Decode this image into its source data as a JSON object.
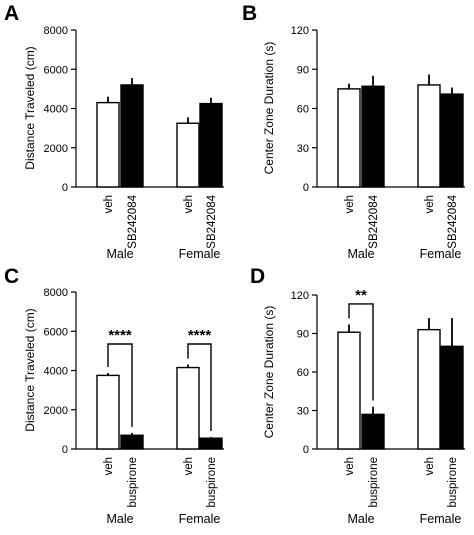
{
  "chart_data": [
    {
      "type": "bar",
      "panel": "A",
      "ylabel": "Distance Traveled (cm)",
      "ylim": [
        0,
        8000
      ],
      "yticks": [
        0,
        2000,
        4000,
        6000,
        8000
      ],
      "groups": [
        "Male",
        "Female"
      ],
      "categories": [
        "veh",
        "SB242084"
      ],
      "series": [
        {
          "values": [
            4300,
            5200
          ],
          "errors": [
            300,
            350
          ]
        },
        {
          "values": [
            3250,
            4250
          ],
          "errors": [
            300,
            300
          ]
        }
      ],
      "colors": [
        "#ffffff",
        "#000000"
      ],
      "significance": []
    },
    {
      "type": "bar",
      "panel": "B",
      "ylabel": "Center Zone Duration (s)",
      "ylim": [
        0,
        120
      ],
      "yticks": [
        0,
        30,
        60,
        90,
        120
      ],
      "groups": [
        "Male",
        "Female"
      ],
      "categories": [
        "veh",
        "SB242084"
      ],
      "series": [
        {
          "values": [
            75,
            77
          ],
          "errors": [
            4,
            8
          ]
        },
        {
          "values": [
            78,
            71
          ],
          "errors": [
            8,
            5
          ]
        }
      ],
      "colors": [
        "#ffffff",
        "#000000"
      ],
      "significance": []
    },
    {
      "type": "bar",
      "panel": "C",
      "ylabel": "Distance Traveled (cm)",
      "ylim": [
        0,
        8000
      ],
      "yticks": [
        0,
        2000,
        4000,
        6000,
        8000
      ],
      "groups": [
        "Male",
        "Female"
      ],
      "categories": [
        "veh",
        "buspirone"
      ],
      "series": [
        {
          "values": [
            3750,
            700
          ],
          "errors": [
            120,
            120
          ]
        },
        {
          "values": [
            4150,
            550
          ],
          "errors": [
            150,
            60
          ]
        }
      ],
      "colors": [
        "#ffffff",
        "#000000"
      ],
      "significance": [
        {
          "group": 0,
          "label": "****",
          "y": 5350
        },
        {
          "group": 1,
          "label": "****",
          "y": 5350
        }
      ]
    },
    {
      "type": "bar",
      "panel": "D",
      "ylabel": "Center Zone Duration (s)",
      "ylim": [
        0,
        120
      ],
      "yticks": [
        0,
        30,
        60,
        90,
        120
      ],
      "groups": [
        "Male",
        "Female"
      ],
      "categories": [
        "veh",
        "buspirone"
      ],
      "series": [
        {
          "values": [
            91,
            27
          ],
          "errors": [
            6,
            6
          ]
        },
        {
          "values": [
            93,
            80
          ],
          "errors": [
            9,
            22
          ]
        }
      ],
      "colors": [
        "#ffffff",
        "#000000"
      ],
      "significance": [
        {
          "group": 0,
          "label": "**",
          "y": 113
        }
      ]
    }
  ]
}
